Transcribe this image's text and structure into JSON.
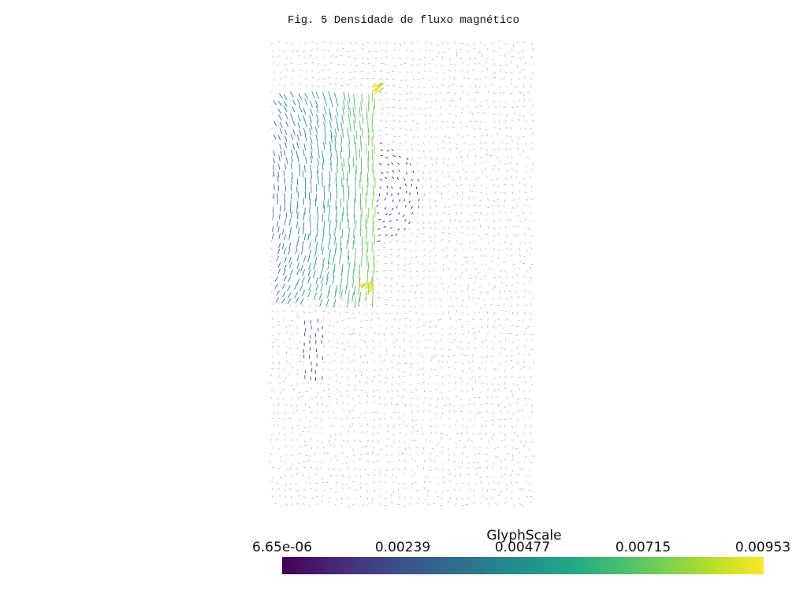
{
  "title": "Fig. 5 Densidade de fluxo magnético",
  "colorbar": {
    "title": "GlyphScale",
    "colormap": "viridis",
    "ticks": [
      "6.65e-06",
      "0.00239",
      "0.00477",
      "0.00715",
      "0.00953"
    ],
    "range": [
      6.65e-06,
      0.00953
    ]
  },
  "colors": {
    "low": "#440154",
    "mid": "#21918c",
    "high": "#fde725"
  }
}
